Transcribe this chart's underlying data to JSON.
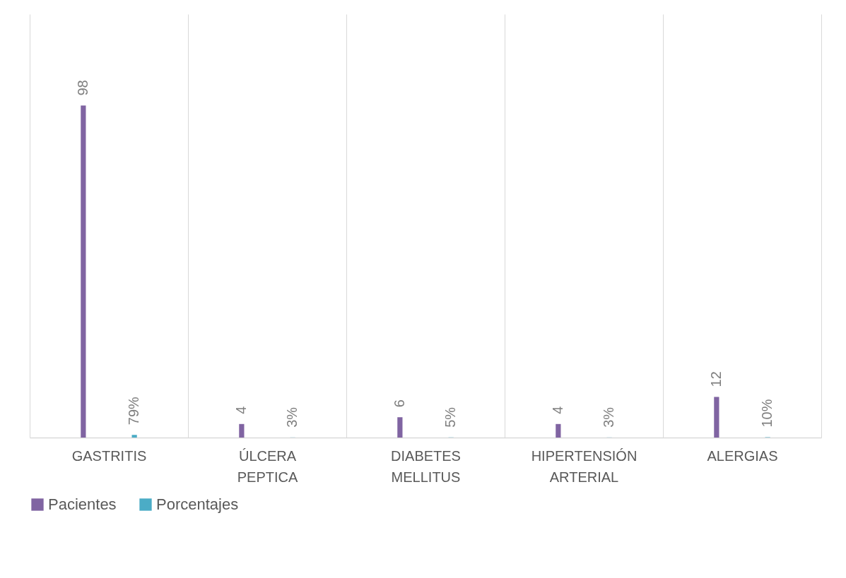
{
  "chart_data": {
    "type": "bar",
    "categories": [
      "GASTRITIS",
      "ÚLCERA PEPTICA",
      "DIABETES MELLITUS",
      "HIPERTENSIÓN ARTERIAL",
      "ALERGIAS"
    ],
    "series": [
      {
        "name": "Pacientes",
        "color": "#8064a2",
        "values": [
          98,
          4,
          6,
          4,
          12
        ],
        "value_labels": [
          "98",
          "4",
          "6",
          "4",
          "12"
        ]
      },
      {
        "name": "Porcentajes",
        "color": "#4bacc6",
        "values": [
          0.79,
          0.03,
          0.05,
          0.03,
          0.1
        ],
        "value_labels": [
          "79%",
          "3%",
          "5%",
          "3%",
          "10%"
        ]
      }
    ],
    "ylim": [
      0,
      125
    ],
    "grid": "x",
    "legend": "bottom"
  }
}
